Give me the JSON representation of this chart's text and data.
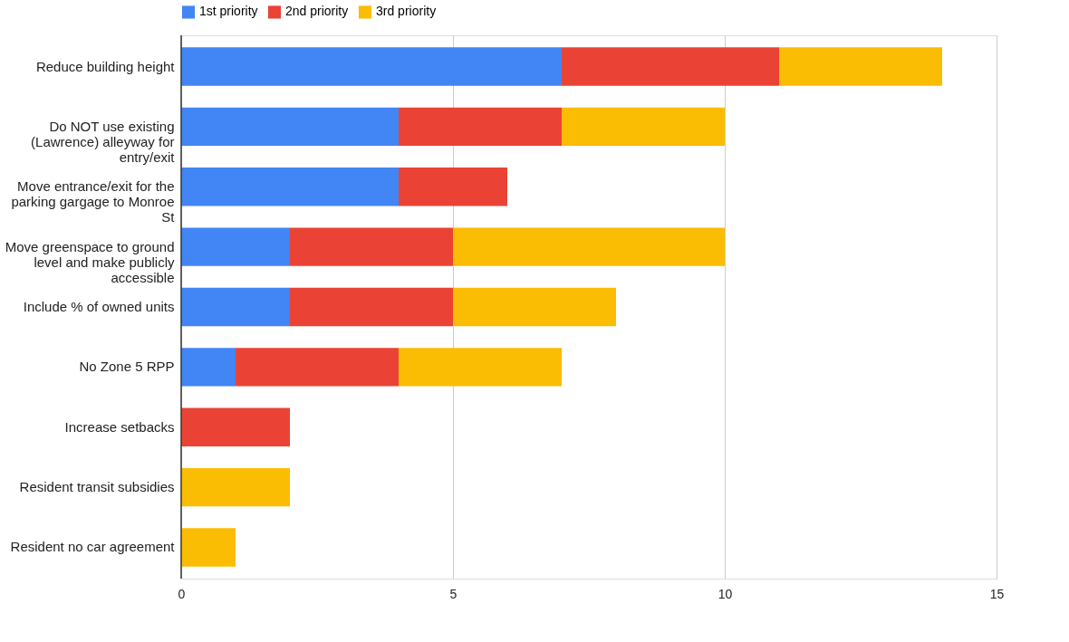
{
  "chart_data": {
    "type": "bar",
    "orientation": "horizontal",
    "stacked": true,
    "categories": [
      "Reduce building height",
      "Do NOT use existing (Lawrence) alleyway for entry/exit",
      "Move entrance/exit for the parking gargage to Monroe St",
      "Move greenspace to ground level and make publicly accessible",
      "Include % of owned units",
      "No Zone 5 RPP",
      "Increase setbacks",
      "Resident transit subsidies",
      "Resident no car agreement"
    ],
    "series": [
      {
        "name": "1st priority",
        "color": "#4285f4",
        "values": [
          7,
          4,
          4,
          2,
          2,
          1,
          0,
          0,
          0
        ]
      },
      {
        "name": "2nd priority",
        "color": "#ea4335",
        "values": [
          4,
          3,
          2,
          3,
          3,
          3,
          2,
          0,
          0
        ]
      },
      {
        "name": "3rd priority",
        "color": "#fbbc04",
        "values": [
          3,
          3,
          0,
          5,
          3,
          3,
          0,
          2,
          1
        ]
      }
    ],
    "xlim": [
      0,
      15
    ],
    "xticks": [
      0,
      5,
      10,
      15
    ],
    "grid": "x",
    "legend": "top"
  }
}
